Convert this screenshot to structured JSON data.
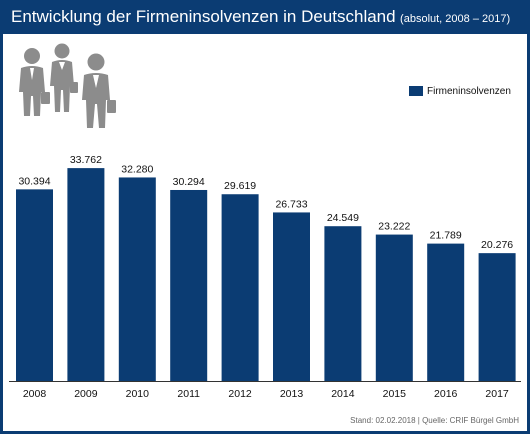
{
  "header": {
    "title": "Entwicklung der Firmeninsolvenzen in Deutschland",
    "subtitle": "(absolut, 2008 – 2017)"
  },
  "legend": {
    "label": "Firmeninsolvenzen"
  },
  "source": "Stand: 02.02.2018 | Quelle: CRIF Bürgel GmbH",
  "icons": [
    "businessman-icon",
    "businesswoman-icon",
    "businessman-icon"
  ],
  "colors": {
    "frame": "#0b3c73",
    "bar": "#0b3c73",
    "icon": "#8c8c8c"
  },
  "chart_data": {
    "type": "bar",
    "categories": [
      "2008",
      "2009",
      "2010",
      "2011",
      "2012",
      "2013",
      "2014",
      "2015",
      "2016",
      "2017"
    ],
    "values": [
      30394,
      33762,
      32280,
      30294,
      29619,
      26733,
      24549,
      23222,
      21789,
      20276
    ],
    "value_labels": [
      "30.394",
      "33.762",
      "32.280",
      "30.294",
      "29.619",
      "26.733",
      "24.549",
      "23.222",
      "21.789",
      "20.276"
    ],
    "series": [
      {
        "name": "Firmeninsolvenzen",
        "color": "#0b3c73"
      }
    ],
    "ylim": [
      0,
      36000
    ],
    "grid": false,
    "legend_position": "top-right"
  }
}
